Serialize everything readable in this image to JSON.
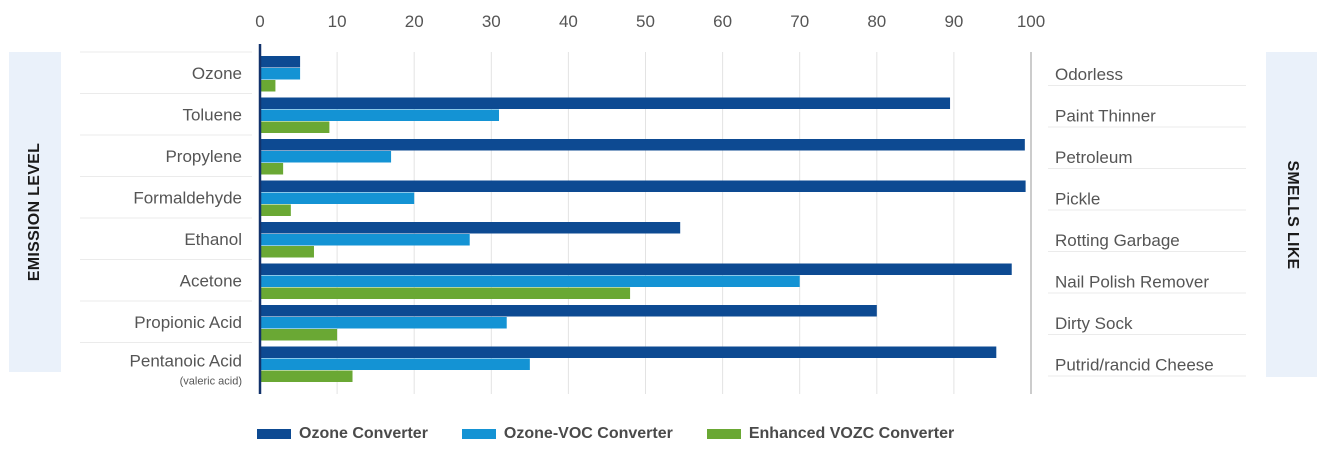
{
  "side_labels": {
    "left": "EMISSION LEVEL",
    "right": "SMELLS LIKE"
  },
  "chart_data": {
    "type": "bar",
    "orientation": "horizontal",
    "xlim": [
      0,
      100
    ],
    "xticks": [
      0,
      10,
      20,
      30,
      40,
      50,
      60,
      70,
      80,
      90,
      100
    ],
    "xtick_position": "top",
    "grid": true,
    "categories": [
      "Ozone",
      "Toluene",
      "Propylene",
      "Formaldehyde",
      "Ethanol",
      "Acetone",
      "Propionic Acid",
      "Pentanoic Acid"
    ],
    "category_sublabels": [
      "",
      "",
      "",
      "",
      "",
      "",
      "",
      "(valeric acid)"
    ],
    "smells": [
      "Odorless",
      "Paint Thinner",
      "Petroleum",
      "Pickle",
      "Rotting Garbage",
      "Nail Polish Remover",
      "Dirty Sock",
      "Putrid/rancid Cheese"
    ],
    "series": [
      {
        "name": "Ozone Converter",
        "color": "#0d4a92",
        "values": [
          5.2,
          89.5,
          99.2,
          99.3,
          54.5,
          97.5,
          80,
          95.5
        ]
      },
      {
        "name": "Ozone-VOC Converter",
        "color": "#1493d4",
        "values": [
          5.2,
          31,
          17,
          20,
          27.2,
          70,
          32,
          35
        ]
      },
      {
        "name": "Enhanced VOZC Converter",
        "color": "#6aa834",
        "values": [
          2,
          9,
          3,
          4,
          7,
          48,
          10,
          12
        ]
      }
    ],
    "legend_position": "bottom"
  }
}
